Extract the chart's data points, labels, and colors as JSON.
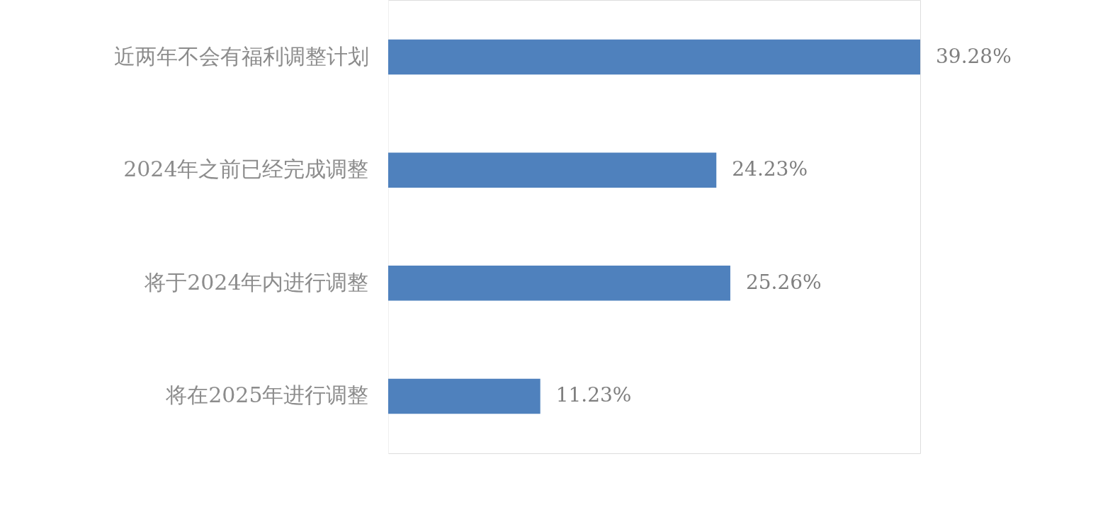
{
  "chart_data": {
    "type": "bar",
    "orientation": "horizontal",
    "categories": [
      "近两年不会有福利调整计划",
      "2024年之前已经完成调整",
      "将于2024年内进行调整",
      "将在2025年进行调整"
    ],
    "values": [
      39.28,
      24.23,
      25.26,
      11.23
    ],
    "value_labels": [
      "39.28%",
      "24.23%",
      "25.26%",
      "11.23%"
    ],
    "color": "#4f81bd",
    "tick_labels": "y"
  }
}
